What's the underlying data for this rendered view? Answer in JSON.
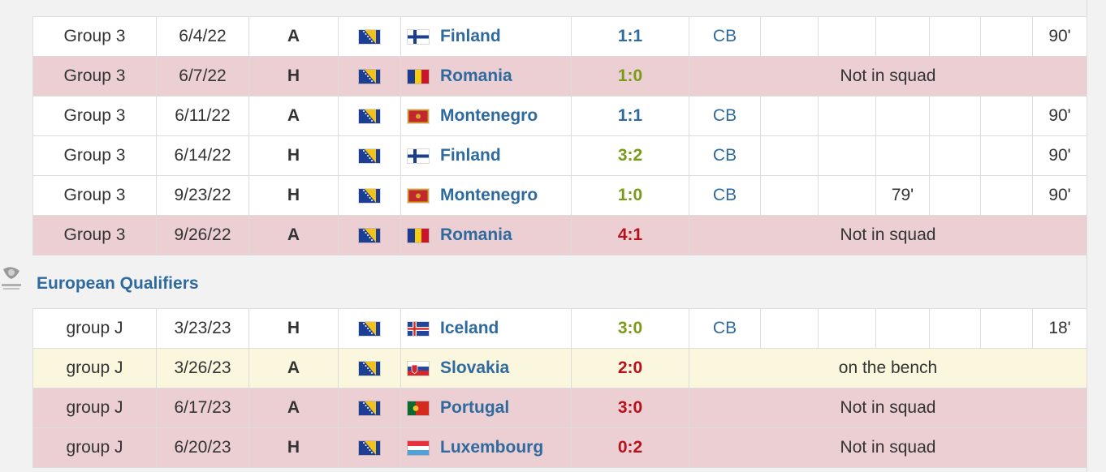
{
  "groups": [
    {
      "title": "",
      "rows": [
        {
          "matchday": "Group 3",
          "date": "6/4/22",
          "venue": "A",
          "opponent": "Finland",
          "opp_flag": "finland",
          "result": "1:1",
          "outcome": "draw",
          "pos": "CB",
          "c1": "",
          "c2": "",
          "c3": "",
          "c4": "",
          "c5": "",
          "mins": "90'",
          "status": "",
          "style": ""
        },
        {
          "matchday": "Group 3",
          "date": "6/7/22",
          "venue": "H",
          "opponent": "Romania",
          "opp_flag": "romania",
          "result": "1:0",
          "outcome": "win",
          "status": "Not in squad",
          "style": "red"
        },
        {
          "matchday": "Group 3",
          "date": "6/11/22",
          "venue": "A",
          "opponent": "Montenegro",
          "opp_flag": "montenegro",
          "result": "1:1",
          "outcome": "draw",
          "pos": "CB",
          "c1": "",
          "c2": "",
          "c3": "",
          "c4": "",
          "c5": "",
          "mins": "90'",
          "status": "",
          "style": ""
        },
        {
          "matchday": "Group 3",
          "date": "6/14/22",
          "venue": "H",
          "opponent": "Finland",
          "opp_flag": "finland",
          "result": "3:2",
          "outcome": "win",
          "pos": "CB",
          "c1": "",
          "c2": "",
          "c3": "",
          "c4": "",
          "c5": "",
          "mins": "90'",
          "status": "",
          "style": ""
        },
        {
          "matchday": "Group 3",
          "date": "9/23/22",
          "venue": "H",
          "opponent": "Montenegro",
          "opp_flag": "montenegro",
          "result": "1:0",
          "outcome": "win",
          "pos": "CB",
          "c1": "",
          "c2": "",
          "c3": "79'",
          "c4": "",
          "c5": "",
          "mins": "90'",
          "status": "",
          "style": ""
        },
        {
          "matchday": "Group 3",
          "date": "9/26/22",
          "venue": "A",
          "opponent": "Romania",
          "opp_flag": "romania",
          "result": "4:1",
          "outcome": "loss",
          "status": "Not in squad",
          "style": "red"
        }
      ]
    },
    {
      "title": "European Qualifiers",
      "rows": [
        {
          "matchday": "group J",
          "date": "3/23/23",
          "venue": "H",
          "opponent": "Iceland",
          "opp_flag": "iceland",
          "result": "3:0",
          "outcome": "win",
          "pos": "CB",
          "c1": "",
          "c2": "",
          "c3": "",
          "c4": "",
          "c5": "",
          "mins": "18'",
          "status": "",
          "style": ""
        },
        {
          "matchday": "group J",
          "date": "3/26/23",
          "venue": "A",
          "opponent": "Slovakia",
          "opp_flag": "slovakia",
          "result": "2:0",
          "outcome": "loss",
          "status": "on the bench",
          "style": "yellow"
        },
        {
          "matchday": "group J",
          "date": "6/17/23",
          "venue": "A",
          "opponent": "Portugal",
          "opp_flag": "portugal",
          "result": "3:0",
          "outcome": "loss",
          "status": "Not in squad",
          "style": "red"
        },
        {
          "matchday": "group J",
          "date": "6/20/23",
          "venue": "H",
          "opponent": "Luxembourg",
          "opp_flag": "luxembourg",
          "result": "0:2",
          "outcome": "loss",
          "status": "Not in squad",
          "style": "red"
        }
      ]
    }
  ],
  "team_flag": "bosnia-and-herzegovina",
  "colors": {
    "link": "#2e6a9e",
    "win": "#7a9a1a",
    "loss": "#b5121b",
    "draw": "#2e6a9e",
    "not_in_squad_bg": "#ebcfd3",
    "bench_bg": "#fbf7de"
  }
}
